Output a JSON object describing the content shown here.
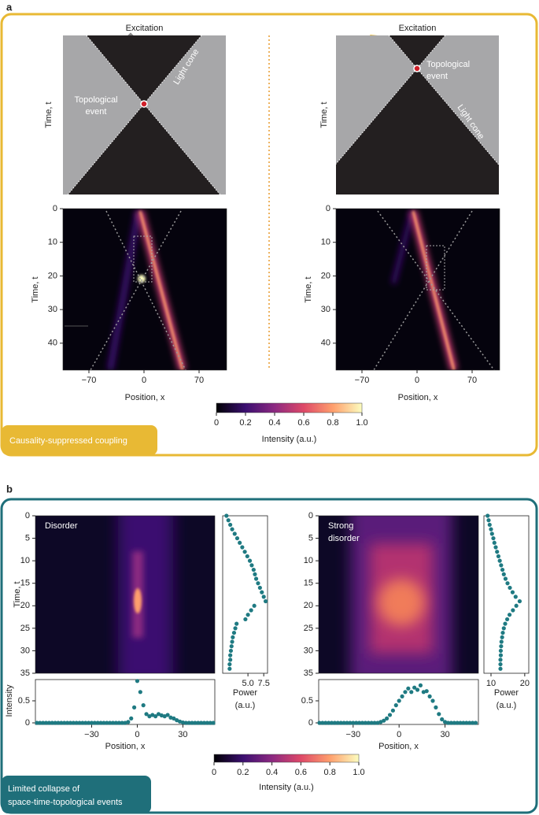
{
  "panel_a": {
    "label": "a",
    "caption": "Causality-suppressed coupling",
    "left_diagram": {
      "excitation": "Excitation",
      "y_label": "Time, t",
      "event_lines": [
        "Topological",
        "event"
      ],
      "light_cone": "Light cone"
    },
    "right_diagram": {
      "excitation": "Excitation",
      "y_label": "Time, t",
      "event_lines": [
        "Topological",
        "event"
      ],
      "light_cone": "Light cone"
    },
    "left_map": {
      "xlim": [
        -103,
        105
      ],
      "ylim": [
        0,
        48
      ],
      "xticks": [
        {
          "value": -70,
          "label": "−70"
        },
        0,
        70
      ],
      "yticks": [
        0,
        10,
        20,
        30,
        40
      ],
      "x_label": "Position, x",
      "y_label": "Time, t"
    },
    "right_map": {
      "xlim": [
        -103,
        105
      ],
      "ylim": [
        0,
        48
      ],
      "xticks": [
        {
          "value": -70,
          "label": "−70"
        },
        0,
        70
      ],
      "yticks": [
        0,
        10,
        20,
        30,
        40
      ],
      "x_label": "Position, x",
      "y_label": "Time, t"
    },
    "colorbar": {
      "xlim": [
        0,
        1
      ],
      "ticks": [
        0,
        0.2,
        0.4,
        0.6,
        0.8,
        {
          "value": 1,
          "label": "1.0"
        }
      ],
      "label": "Intensity (a.u.)"
    }
  },
  "panel_b": {
    "label": "b",
    "caption_lines": [
      "Limited collapse of",
      "space-time-topological events"
    ],
    "left": {
      "text_lines": [
        "Disorder"
      ],
      "map": {
        "ylim": [
          0,
          35
        ],
        "yticks": [
          0,
          5,
          10,
          15,
          20,
          25,
          30,
          35
        ],
        "y_label": "Time, t"
      },
      "power": {
        "xlim": [
          1,
          8.1
        ],
        "xticks": [
          {
            "value": 5,
            "label": "5.0"
          },
          7.5
        ],
        "label_lines": [
          "Power",
          "(a.u.)"
        ],
        "t": [
          0,
          1,
          2,
          3,
          4,
          5,
          6,
          7,
          8,
          9,
          10,
          11,
          12,
          13,
          14,
          15,
          16,
          17,
          18,
          19,
          20,
          21,
          22,
          23,
          24,
          25,
          26,
          27,
          28,
          29,
          30,
          31,
          32,
          33,
          34
        ],
        "values": [
          1.6,
          1.9,
          2.2,
          2.5,
          2.9,
          3.3,
          3.7,
          4.1,
          4.5,
          4.9,
          5.3,
          5.6,
          5.9,
          6.1,
          6.3,
          6.6,
          6.9,
          7.2,
          7.5,
          7.8,
          6.0,
          5.5,
          5.0,
          4.6,
          3.2,
          3.0,
          2.8,
          2.6,
          2.5,
          2.4,
          2.3,
          2.2,
          2.2,
          2.1,
          2.1
        ]
      },
      "intensity": {
        "xlim": [
          -67,
          51
        ],
        "ylim": [
          0,
          1
        ],
        "xticks": [
          {
            "value": -30,
            "label": "−30"
          },
          0,
          30
        ],
        "yticks": [
          0,
          0.5
        ],
        "y_label": "Intensity",
        "x_label": "Position, x",
        "x": [
          -66,
          -64,
          -62,
          -60,
          -58,
          -56,
          -54,
          -52,
          -50,
          -48,
          -46,
          -44,
          -42,
          -40,
          -38,
          -36,
          -34,
          -32,
          -30,
          -28,
          -26,
          -24,
          -22,
          -20,
          -18,
          -16,
          -14,
          -12,
          -10,
          -8,
          -6,
          -4,
          -2,
          0,
          2,
          4,
          6,
          8,
          10,
          12,
          14,
          16,
          18,
          20,
          22,
          24,
          26,
          28,
          30,
          32,
          34,
          36,
          38,
          40,
          42,
          44,
          46,
          48,
          50
        ],
        "values": [
          0,
          0,
          0,
          0,
          0,
          0,
          0,
          0,
          0,
          0,
          0,
          0,
          0,
          0,
          0,
          0,
          0,
          0,
          0,
          0,
          0,
          0,
          0,
          0,
          0,
          0,
          0,
          0,
          0,
          0,
          0.02,
          0.1,
          0.35,
          0.95,
          0.7,
          0.4,
          0.2,
          0.15,
          0.18,
          0.15,
          0.2,
          0.17,
          0.15,
          0.18,
          0.12,
          0.1,
          0.06,
          0.03,
          0.01,
          0,
          0,
          0,
          0,
          0,
          0,
          0,
          0,
          0,
          0
        ]
      }
    },
    "right": {
      "text_lines": [
        "Strong",
        "disorder"
      ],
      "map": {
        "ylim": [
          0,
          35
        ],
        "yticks": [
          0,
          5,
          10,
          15,
          20,
          25,
          30,
          35
        ]
      },
      "power": {
        "xlim": [
          7.9,
          21.2
        ],
        "xticks": [
          10,
          20
        ],
        "label_lines": [
          "Power",
          "(a.u.)"
        ],
        "t": [
          0,
          1,
          2,
          3,
          4,
          5,
          6,
          7,
          8,
          9,
          10,
          11,
          12,
          13,
          14,
          15,
          16,
          17,
          18,
          19,
          20,
          21,
          22,
          23,
          24,
          25,
          26,
          27,
          28,
          29,
          30,
          31,
          32,
          33,
          34
        ],
        "values": [
          9.0,
          9.3,
          9.6,
          10.0,
          10.3,
          10.7,
          11.0,
          11.4,
          11.8,
          12.2,
          12.6,
          13.0,
          13.4,
          13.8,
          14.3,
          14.9,
          15.6,
          16.4,
          17.3,
          18.5,
          17.5,
          16.5,
          15.5,
          14.8,
          14.2,
          13.8,
          13.5,
          13.3,
          13.1,
          13.0,
          12.9,
          12.9,
          12.8,
          12.8,
          12.8
        ]
      },
      "intensity": {
        "xlim": [
          -52.5,
          51.8
        ],
        "ylim": [
          0,
          1
        ],
        "xticks": [
          {
            "value": -30,
            "label": "−30"
          },
          0,
          30
        ],
        "yticks": [
          0,
          0.5
        ],
        "x_label": "Position, x",
        "x": [
          -52,
          -50,
          -48,
          -46,
          -44,
          -42,
          -40,
          -38,
          -36,
          -34,
          -32,
          -30,
          -28,
          -26,
          -24,
          -22,
          -20,
          -18,
          -16,
          -14,
          -12,
          -10,
          -8,
          -6,
          -4,
          -2,
          0,
          2,
          4,
          6,
          8,
          10,
          12,
          14,
          16,
          18,
          20,
          22,
          24,
          26,
          28,
          30,
          32,
          34,
          36,
          38,
          40,
          42,
          44,
          46,
          48,
          50
        ],
        "values": [
          0,
          0,
          0,
          0,
          0,
          0,
          0,
          0,
          0,
          0,
          0,
          0,
          0,
          0,
          0,
          0,
          0,
          0,
          0,
          0,
          0.02,
          0.05,
          0.1,
          0.18,
          0.28,
          0.4,
          0.5,
          0.6,
          0.7,
          0.78,
          0.7,
          0.8,
          0.75,
          0.85,
          0.7,
          0.72,
          0.6,
          0.5,
          0.35,
          0.2,
          0.08,
          0.02,
          0,
          0,
          0,
          0,
          0,
          0,
          0,
          0,
          0,
          0
        ]
      }
    },
    "colorbar": {
      "xlim": [
        0,
        1
      ],
      "ticks": [
        0,
        0.2,
        0.4,
        0.6,
        0.8,
        {
          "value": 1,
          "label": "1.0"
        }
      ],
      "label": "Intensity (a.u.)"
    }
  }
}
